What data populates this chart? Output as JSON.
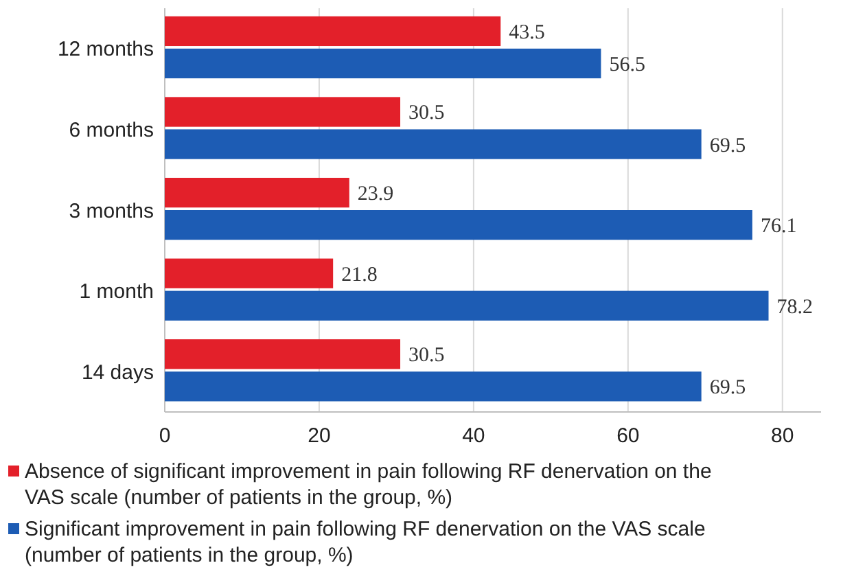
{
  "chart_data": {
    "type": "bar",
    "orientation": "horizontal",
    "categories": [
      "12 months",
      "6 months",
      "3 months",
      "1 month",
      "14 days"
    ],
    "series": [
      {
        "name": "Absence of significant improvement in pain following RF denervation on the VAS scale (number of patients in the group, %)",
        "color": "#e3202a",
        "values": [
          43.5,
          30.5,
          23.9,
          21.8,
          30.5
        ]
      },
      {
        "name": "Significant improvement in pain following RF denervation on the VAS scale (number of patients in the group, %)",
        "color": "#1d5cb4",
        "values": [
          56.5,
          69.5,
          76.1,
          78.2,
          69.5
        ]
      }
    ],
    "xlim": [
      0,
      85
    ],
    "xticks": [
      0,
      20,
      40,
      60,
      80
    ],
    "grid": "x",
    "data_labels": true,
    "legend": "bottom"
  }
}
